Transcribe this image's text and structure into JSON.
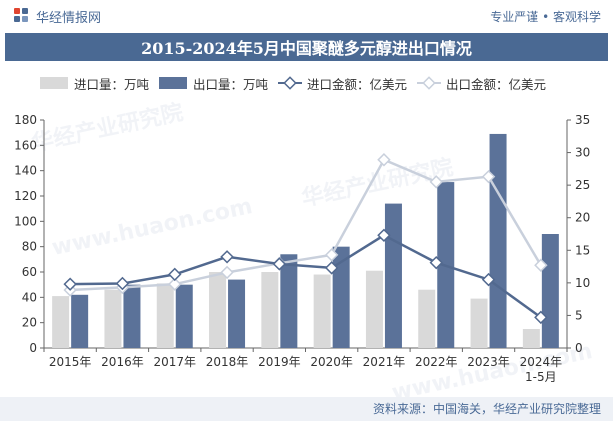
{
  "header": {
    "brand": "华经情报网",
    "tagline": "专业严谨 • 客观科学"
  },
  "title": "2015-2024年5月中国聚醚多元醇进出口情况",
  "legend": {
    "import_volume": "进口量：万吨",
    "export_volume": "出口量：万吨",
    "import_value": "进口金额：亿美元",
    "export_value": "出口金额：亿美元"
  },
  "footer": {
    "source": "资料来源：中国海关，华经产业研究院整理"
  },
  "watermark": {
    "text": "华经产业研究院",
    "url": "www.huaon.com"
  },
  "colors": {
    "import_bar": "#d9d9d9",
    "export_bar": "#5b7299",
    "import_line": "#52698f",
    "export_line": "#c9d0dc",
    "title_bg": "#4a6993"
  },
  "chart_data": {
    "type": "bar",
    "categories": [
      "2015年",
      "2016年",
      "2017年",
      "2018年",
      "2019年",
      "2020年",
      "2021年",
      "2022年",
      "2023年",
      "2024年\n1-5月"
    ],
    "y_left": {
      "ylim": [
        0,
        180
      ],
      "ticks": [
        0,
        20,
        40,
        60,
        80,
        100,
        120,
        140,
        160,
        180
      ]
    },
    "y_right": {
      "ylim": [
        0,
        35
      ],
      "ticks": [
        0,
        5,
        10,
        15,
        20,
        25,
        30,
        35
      ]
    },
    "series": [
      {
        "name": "进口量：万吨",
        "type": "bar",
        "axis": "left",
        "values": [
          41,
          46,
          51,
          60,
          60,
          58,
          61,
          46,
          39,
          15
        ]
      },
      {
        "name": "出口量：万吨",
        "type": "bar",
        "axis": "left",
        "values": [
          42,
          50,
          50,
          54,
          74,
          80,
          114,
          131,
          169,
          90
        ]
      },
      {
        "name": "进口金额：亿美元",
        "type": "line",
        "axis": "right",
        "values": [
          9.8,
          9.9,
          11.3,
          14.0,
          12.9,
          12.3,
          17.3,
          13.1,
          10.5,
          4.7
        ]
      },
      {
        "name": "出口金额：亿美元",
        "type": "line",
        "axis": "right",
        "values": [
          8.9,
          9.3,
          9.8,
          11.6,
          13.0,
          14.3,
          28.9,
          25.5,
          26.3,
          12.7
        ]
      }
    ],
    "grid": false,
    "legend_position": "top"
  }
}
